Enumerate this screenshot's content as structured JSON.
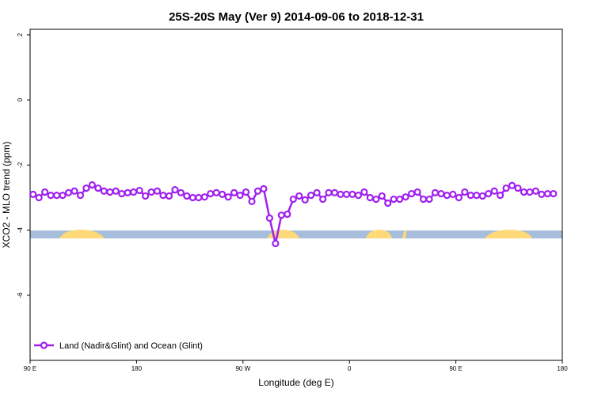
{
  "chart_data": {
    "type": "line",
    "title": "25S-20S May (Ver 9)   2014-09-06 to 2018-12-31",
    "x_label": "Longitude (deg E)",
    "y_label": "XCO2 - MLO trend (ppm)",
    "xlim": [
      90,
      540
    ],
    "ylim": [
      -8,
      2.17
    ],
    "xticks": [
      {
        "value": 90,
        "label": "90 E"
      },
      180,
      {
        "value": 270,
        "label": "90 W"
      },
      {
        "value": 360,
        "label": "0"
      },
      {
        "value": 450,
        "label": "90 E"
      },
      {
        "value": 540,
        "label": "180"
      }
    ],
    "yticks": [
      2,
      0,
      -2,
      -4,
      -6
    ],
    "legend": "bottom-left",
    "series": [
      {
        "name": "Land (Nadir&Glint) and Ocean (Glint)",
        "color": "#a020f0",
        "x": [
          92.5,
          97.5,
          102.5,
          107.5,
          112.5,
          117.5,
          122.5,
          127.5,
          132.5,
          137.5,
          142.5,
          147.5,
          152.5,
          157.5,
          162.5,
          167.5,
          172.5,
          177.5,
          182.5,
          187.5,
          192.5,
          197.5,
          202.5,
          207.5,
          212.5,
          217.5,
          222.5,
          227.5,
          232.5,
          237.5,
          242.5,
          247.5,
          252.5,
          257.5,
          262.5,
          267.5,
          272.5,
          277.5,
          282.5,
          287.5,
          292.5,
          297.5,
          302.5,
          307.5,
          312.5,
          317.5,
          322.5,
          327.5,
          332.5,
          337.5,
          342.5,
          347.5,
          352.5,
          357.5,
          362.5,
          367.5,
          372.5,
          377.5,
          382.5,
          387.5,
          392.5,
          397.5,
          402.5,
          407.5,
          412.5,
          417.5,
          422.5,
          427.5,
          432.5,
          437.5,
          442.5,
          447.5,
          452.5,
          457.5,
          462.5,
          467.5,
          472.5,
          477.5,
          482.5,
          487.5,
          492.5,
          497.5,
          502.5,
          507.5,
          512.5,
          517.5,
          522.5,
          527.5,
          532.5
        ],
        "values": [
          -2.9,
          -3.0,
          -2.83,
          -2.93,
          -2.93,
          -2.93,
          -2.85,
          -2.8,
          -2.93,
          -2.71,
          -2.61,
          -2.71,
          -2.8,
          -2.83,
          -2.8,
          -2.88,
          -2.85,
          -2.83,
          -2.78,
          -2.95,
          -2.83,
          -2.8,
          -2.93,
          -2.95,
          -2.76,
          -2.85,
          -2.95,
          -3.0,
          -3.0,
          -2.98,
          -2.88,
          -2.85,
          -2.9,
          -2.98,
          -2.85,
          -2.93,
          -2.83,
          -3.12,
          -2.8,
          -2.73,
          -3.63,
          -4.41,
          -3.54,
          -3.51,
          -3.05,
          -2.95,
          -3.07,
          -2.93,
          -2.85,
          -3.05,
          -2.85,
          -2.85,
          -2.9,
          -2.9,
          -2.9,
          -2.93,
          -2.83,
          -3.0,
          -3.05,
          -2.95,
          -3.17,
          -3.05,
          -3.05,
          -2.98,
          -2.88,
          -2.83,
          -3.05,
          -3.05,
          -2.85,
          -2.88,
          -2.93,
          -2.9,
          -3.0,
          -2.83,
          -2.93,
          -2.93,
          -2.95,
          -2.88,
          -2.8,
          -2.93,
          -2.71,
          -2.63,
          -2.71,
          -2.83,
          -2.83,
          -2.8,
          -2.9,
          -2.88,
          -2.88
        ]
      }
    ]
  }
}
